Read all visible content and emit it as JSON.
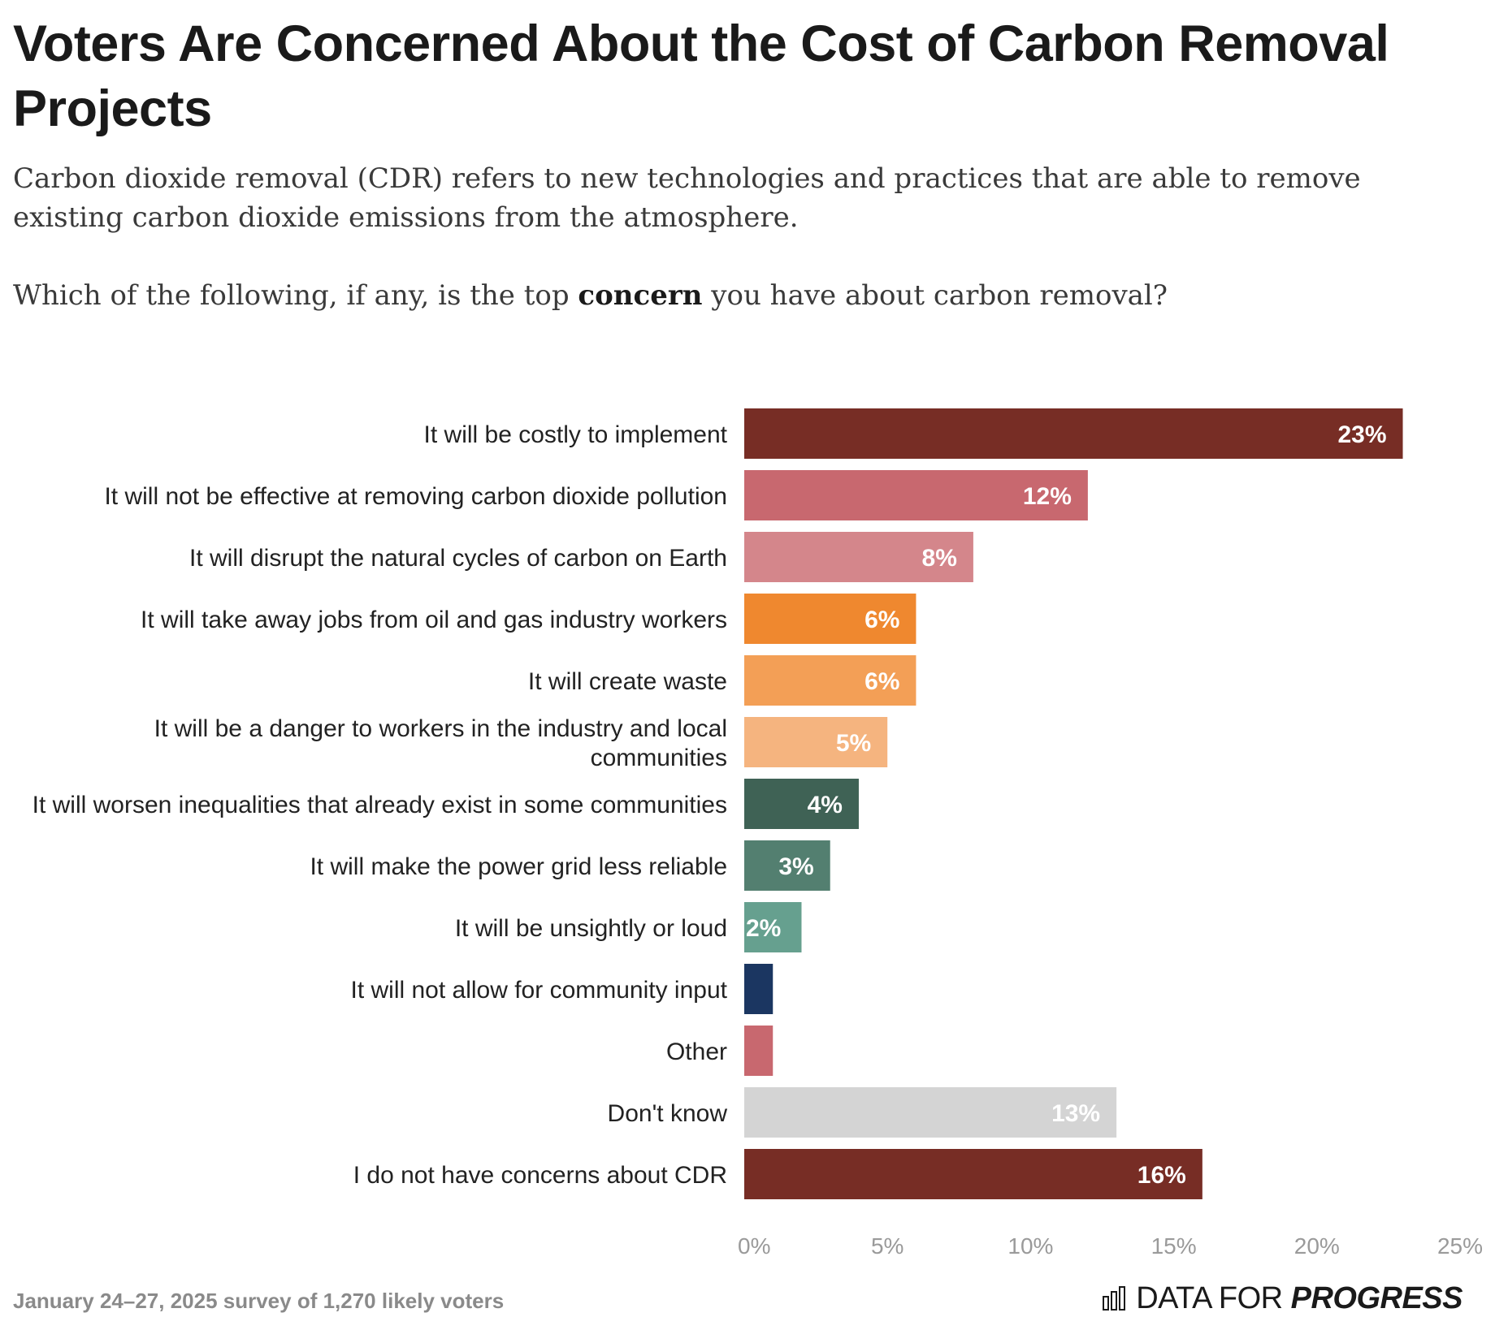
{
  "title": "Voters Are Concerned About the Cost of Carbon Removal Projects",
  "subtitle": "Carbon dioxide removal (CDR) refers to new technologies and practices that are able to remove existing carbon dioxide emissions from the atmosphere.",
  "question": {
    "before": "Which of the following, if any, is the top ",
    "emphasis": "concern",
    "after": " you have about carbon removal?"
  },
  "footer": {
    "note": "January 24–27, 2025 survey of 1,270 likely voters",
    "logo_light": "DATA FOR",
    "logo_bold": "PROGRESS"
  },
  "chart_data": {
    "type": "bar",
    "orientation": "horizontal",
    "categories": [
      "It will be costly to implement",
      "It will not be effective at removing carbon dioxide pollution",
      "It will disrupt the natural cycles of carbon on Earth",
      "It will take away jobs from oil and gas industry workers",
      "It will create waste",
      "It will be a danger to workers in the industry and local communities",
      "It will worsen inequalities that already exist in some communities",
      "It will make the power grid less reliable",
      "It will be unsightly or loud",
      "It will not allow for community input",
      "Other",
      "Don't know",
      "I do not have concerns about CDR"
    ],
    "values": [
      23,
      12,
      8,
      6,
      6,
      5,
      4,
      3,
      2,
      1,
      1,
      13,
      16
    ],
    "value_labels": [
      "23%",
      "12%",
      "8%",
      "6%",
      "6%",
      "5%",
      "4%",
      "3%",
      "2%",
      "",
      "",
      "13%",
      "16%"
    ],
    "colors": [
      "#772d25",
      "#c8686f",
      "#d4868b",
      "#ef882f",
      "#f39f56",
      "#f5b47f",
      "#3f6255",
      "#537f70",
      "#66a08f",
      "#1b3661",
      "#c8686f",
      "#d4d4d4",
      "#772d25"
    ],
    "xlim": [
      0,
      25
    ],
    "xticks": [
      0,
      5,
      10,
      15,
      20,
      25
    ],
    "xtick_labels": [
      "0%",
      "5%",
      "10%",
      "15%",
      "20%",
      "25%"
    ],
    "xlabel": "",
    "ylabel": "",
    "grid": false
  }
}
